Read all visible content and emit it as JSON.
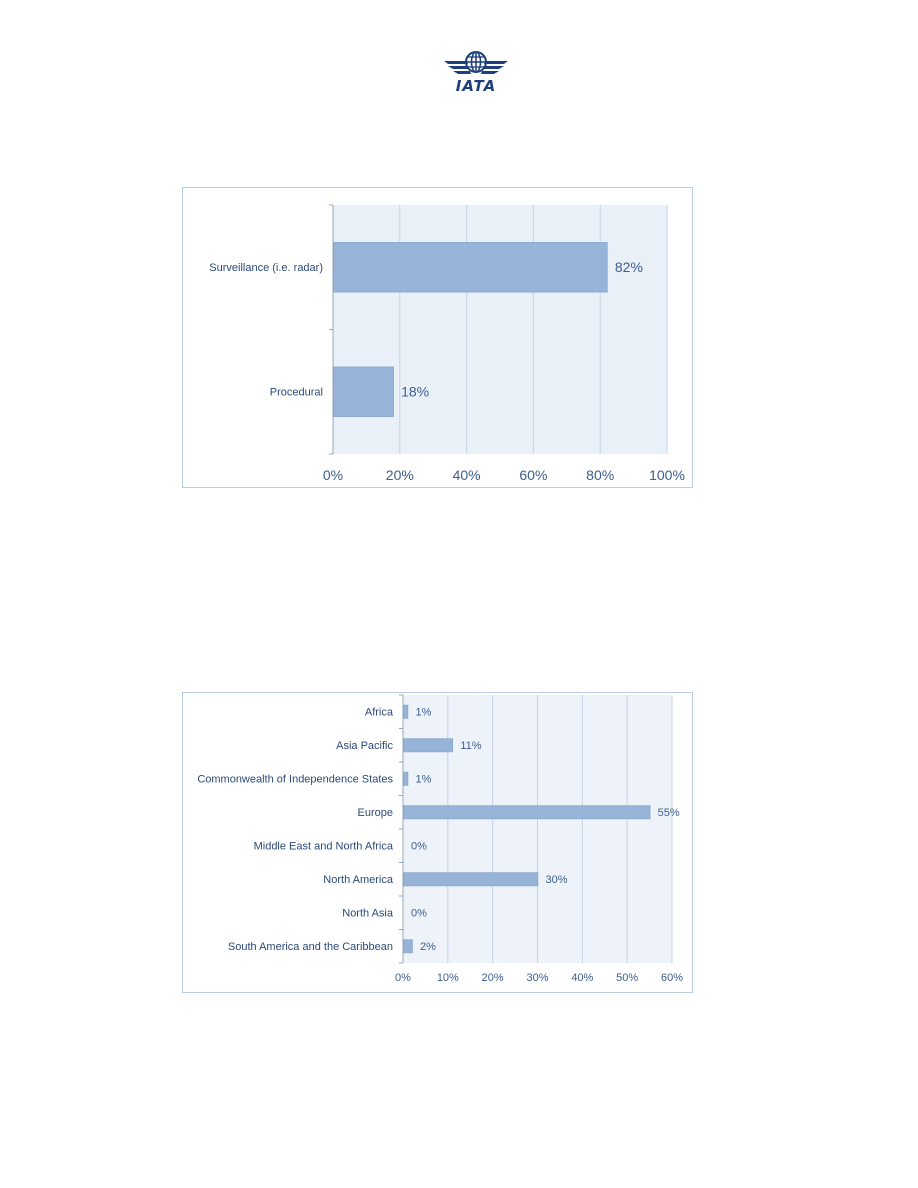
{
  "logo": {
    "text": "IATA",
    "primary_color": "#1d3f7c"
  },
  "chart_data": [
    {
      "type": "bar",
      "orientation": "horizontal",
      "categories": [
        "Surveillance (i.e. radar)",
        "Procedural"
      ],
      "values": [
        82,
        18
      ],
      "data_labels": [
        "82%",
        "18%"
      ],
      "x_ticks": [
        "0%",
        "20%",
        "40%",
        "60%",
        "80%",
        "100%"
      ],
      "xlim": [
        0,
        100
      ],
      "grid": true,
      "bar_color": "#97b3d8",
      "plot_background": "#e9f0f8"
    },
    {
      "type": "bar",
      "orientation": "horizontal",
      "categories": [
        "Africa",
        "Asia Pacific",
        "Commonwealth of Independence States",
        "Europe",
        "Middle East and North Africa",
        "North America",
        "North Asia",
        "South America and the Caribbean"
      ],
      "values": [
        1,
        11,
        1,
        55,
        0,
        30,
        0,
        2
      ],
      "data_labels": [
        "1%",
        "11%",
        "1%",
        "55%",
        "0%",
        "30%",
        "0%",
        "2%"
      ],
      "x_ticks": [
        "0%",
        "10%",
        "20%",
        "30%",
        "40%",
        "50%",
        "60%"
      ],
      "xlim": [
        0,
        60
      ],
      "grid": true,
      "bar_color": "#97b3d8",
      "plot_background": "#eef3f9"
    }
  ]
}
